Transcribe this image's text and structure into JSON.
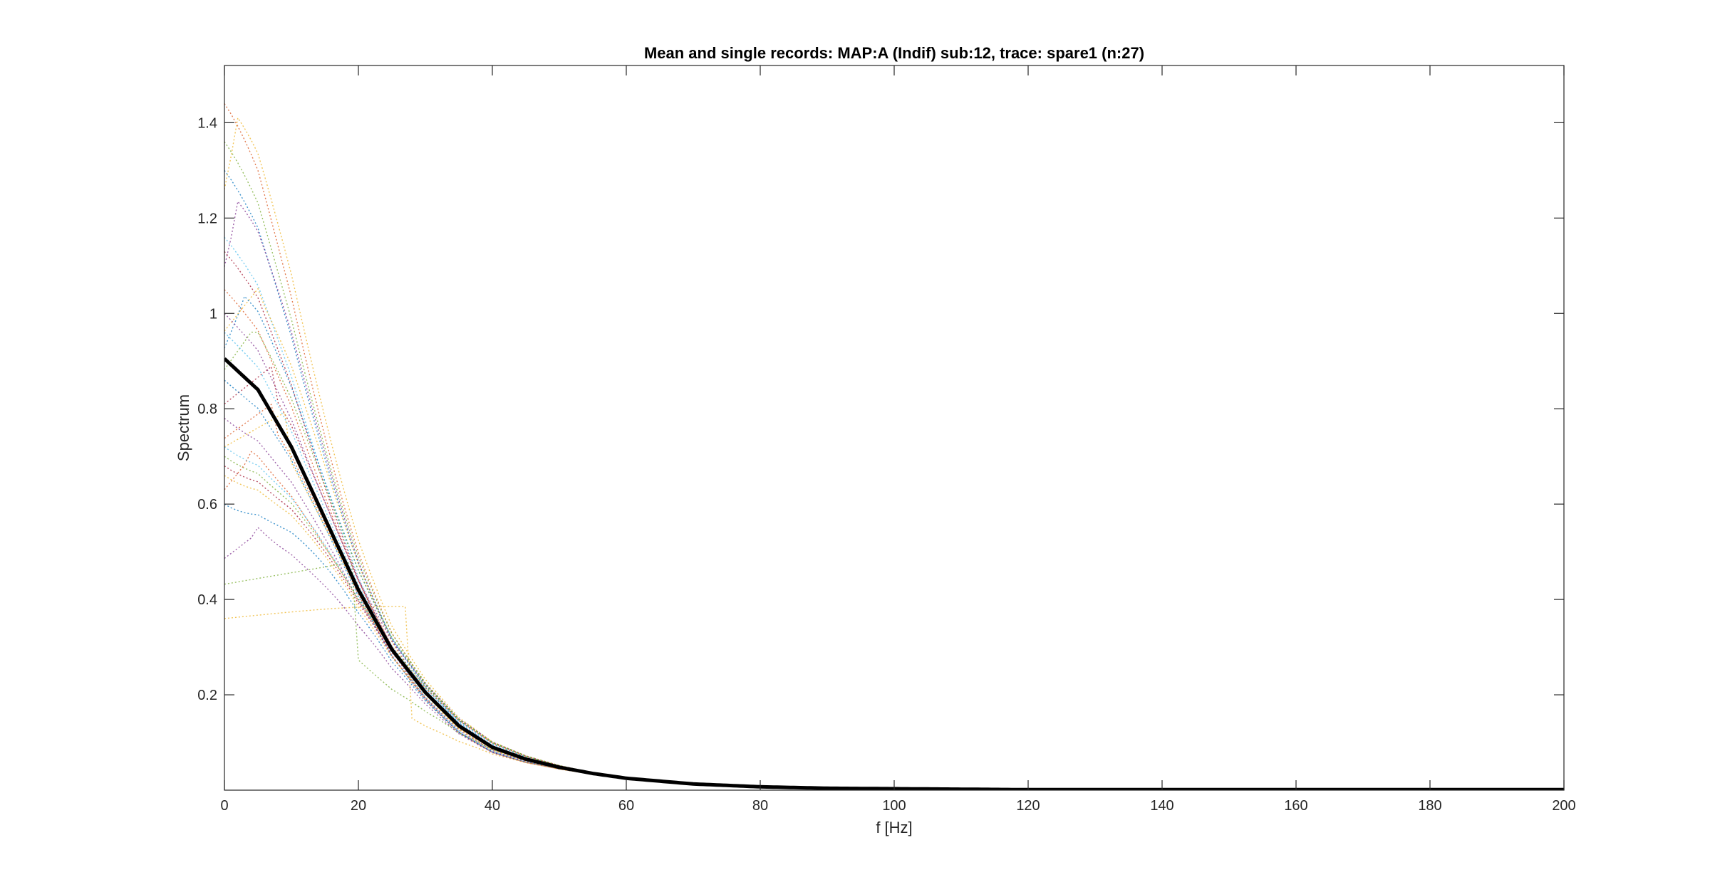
{
  "chart_data": {
    "type": "line",
    "title": "Mean and single records: MAP:A (Indif) sub:12, trace: spare1 (n:27)",
    "xlabel": "f [Hz]",
    "ylabel": "Spectrum",
    "xlim": [
      0,
      200
    ],
    "ylim": [
      0,
      1.52
    ],
    "xticks": [
      0,
      20,
      40,
      60,
      80,
      100,
      120,
      140,
      160,
      180,
      200
    ],
    "xtick_labels": [
      "0",
      "20",
      "40",
      "60",
      "80",
      "100",
      "120",
      "140",
      "160",
      "180",
      "200"
    ],
    "yticks": [
      0.2,
      0.4,
      0.6,
      0.8,
      1.0,
      1.2,
      1.4
    ],
    "ytick_labels": [
      "0.2",
      "0.4",
      "0.6",
      "0.8",
      "1",
      "1.2",
      "1.4"
    ],
    "grid": false,
    "legend": "none",
    "mean_series": {
      "color": "#000000",
      "style": "solid",
      "x": [
        0,
        5,
        10,
        15,
        20,
        25,
        30,
        35,
        40,
        45,
        50,
        55,
        60,
        70,
        80,
        90,
        100,
        110,
        120,
        140,
        160,
        180,
        200
      ],
      "values": [
        0.905,
        0.84,
        0.72,
        0.57,
        0.42,
        0.295,
        0.205,
        0.135,
        0.09,
        0.065,
        0.048,
        0.035,
        0.025,
        0.013,
        0.007,
        0.004,
        0.003,
        0.002,
        0.001,
        0.001,
        0.001,
        0.001,
        0.001
      ]
    },
    "single_records": [
      {
        "color": "#d95319",
        "peak_x": 0,
        "amp": 1.44,
        "base": 0
      },
      {
        "color": "#edb120",
        "peak_x": 2,
        "amp": 1.4,
        "base": 0
      },
      {
        "color": "#77ac30",
        "peak_x": 0,
        "amp": 1.36,
        "base": 0
      },
      {
        "color": "#0072bd",
        "peak_x": 0,
        "amp": 1.3,
        "base": 0
      },
      {
        "color": "#7e2f8e",
        "peak_x": 2,
        "amp": 1.22,
        "base": 0
      },
      {
        "color": "#4dbeee",
        "peak_x": 0,
        "amp": 1.16,
        "base": 0
      },
      {
        "color": "#a2142f",
        "peak_x": 0,
        "amp": 1.13,
        "base": 0
      },
      {
        "color": "#edb120",
        "peak_x": 6,
        "amp": 1.07,
        "base": 0
      },
      {
        "color": "#d95319",
        "peak_x": 0,
        "amp": 1.05,
        "base": 0
      },
      {
        "color": "#0072bd",
        "peak_x": 3,
        "amp": 1.03,
        "base": 0
      },
      {
        "color": "#7e2f8e",
        "peak_x": 0,
        "amp": 1.0,
        "base": 0
      },
      {
        "color": "#77ac30",
        "peak_x": 5,
        "amp": 0.98,
        "base": 0
      },
      {
        "color": "#4dbeee",
        "peak_x": 0,
        "amp": 0.96,
        "base": 0
      },
      {
        "color": "#a2142f",
        "peak_x": 8,
        "amp": 0.9,
        "base": 0
      },
      {
        "color": "#0072bd",
        "peak_x": 0,
        "amp": 0.86,
        "base": 0
      },
      {
        "color": "#d95319",
        "peak_x": 8,
        "amp": 0.82,
        "base": 0
      },
      {
        "color": "#7e2f8e",
        "peak_x": 0,
        "amp": 0.78,
        "base": 0
      },
      {
        "color": "#edb120",
        "peak_x": 10,
        "amp": 0.8,
        "base": 0
      },
      {
        "color": "#4dbeee",
        "peak_x": 0,
        "amp": 0.72,
        "base": 0
      },
      {
        "color": "#77ac30",
        "peak_x": 0,
        "amp": 0.7,
        "base": 0
      },
      {
        "color": "#d95319",
        "peak_x": 4,
        "amp": 0.7,
        "base": 0
      },
      {
        "color": "#a2142f",
        "peak_x": 0,
        "amp": 0.68,
        "base": 0
      },
      {
        "color": "#edb120",
        "peak_x": 0,
        "amp": 0.66,
        "base": 0
      },
      {
        "color": "#0072bd",
        "peak_x": 0,
        "amp": 0.6,
        "base": 0
      },
      {
        "color": "#7e2f8e",
        "peak_x": 5,
        "amp": 0.54,
        "base": 0
      },
      {
        "color": "#edb120",
        "peak_x": 28,
        "amp": 0.4,
        "base": 0
      },
      {
        "color": "#77ac30",
        "peak_x": 20,
        "amp": 0.48,
        "base": 0
      }
    ]
  }
}
